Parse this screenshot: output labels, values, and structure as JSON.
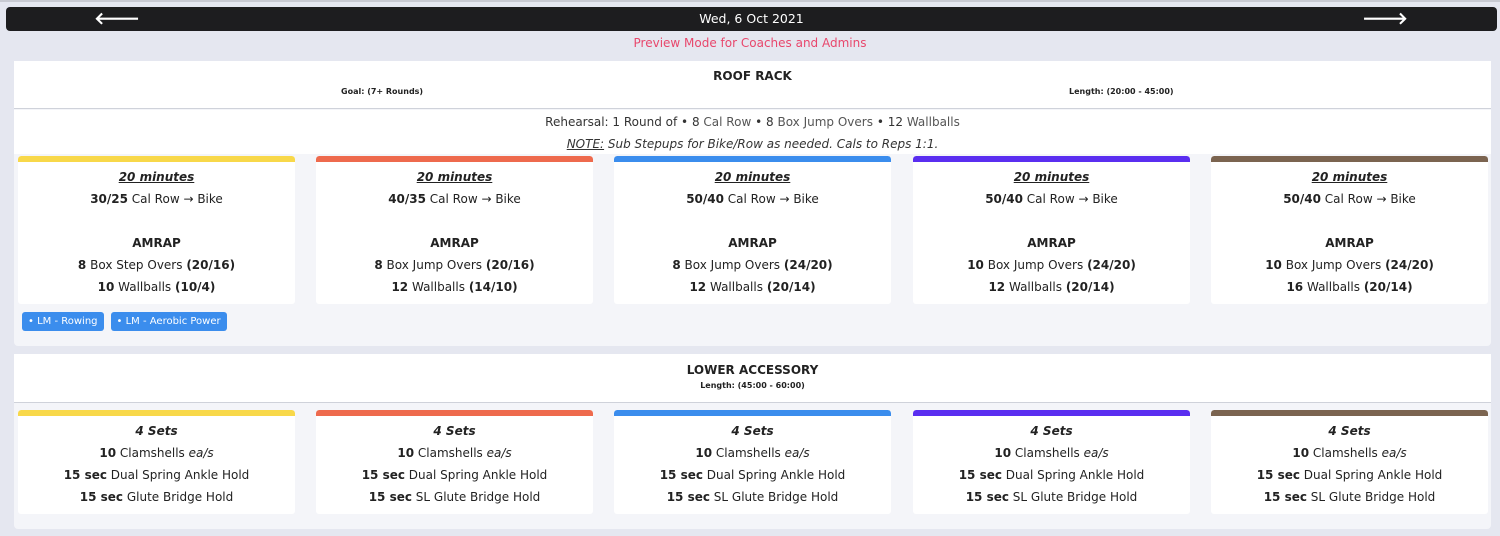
{
  "header": {
    "date": "Wed, 6 Oct 2021",
    "prev_icon": "arrow-left-icon",
    "next_icon": "arrow-right-icon",
    "prev_glyph": "🡐",
    "next_glyph": "🡒"
  },
  "preview_text": "Preview Mode for Coaches and Admins",
  "colors": {
    "yellow": "#f8d84a",
    "orange": "#ee6a4d",
    "blue": "#3b8ded",
    "purple": "#5a2ef0",
    "brown": "#7b6450",
    "preview": "#e8476c"
  },
  "sections": [
    {
      "title": "ROOF RACK",
      "goal": "Goal: (7+ Rounds)",
      "length": "Length: (20:00 - 45:00)",
      "rehearsal": {
        "prefix": "Rehearsal: 1 Round of",
        "sep": "•",
        "items": [
          [
            "8",
            "Cal Row"
          ],
          [
            "8",
            "Box Jump Overs"
          ],
          [
            "12",
            "Wallballs"
          ]
        ]
      },
      "note": {
        "label": "NOTE:",
        "text": "Sub Stepups for Bike/Row as needed. Cals to Reps 1:1."
      },
      "cards": [
        {
          "color": "#f8d84a",
          "duration": "20 minutes",
          "row_num": "30/25",
          "row_text": "Cal Row → Bike",
          "amrap": "AMRAP",
          "m1_num": "8",
          "m1_text": "Box Step Overs",
          "m1_load": "(20/16)",
          "m2_num": "10",
          "m2_text": "Wallballs",
          "m2_load": "(10/4)"
        },
        {
          "color": "#ee6a4d",
          "duration": "20 minutes",
          "row_num": "40/35",
          "row_text": "Cal Row → Bike",
          "amrap": "AMRAP",
          "m1_num": "8",
          "m1_text": "Box Jump Overs",
          "m1_load": "(20/16)",
          "m2_num": "12",
          "m2_text": "Wallballs",
          "m2_load": "(14/10)"
        },
        {
          "color": "#3b8ded",
          "duration": "20 minutes",
          "row_num": "50/40",
          "row_text": "Cal Row → Bike",
          "amrap": "AMRAP",
          "m1_num": "8",
          "m1_text": "Box Jump Overs",
          "m1_load": "(24/20)",
          "m2_num": "12",
          "m2_text": "Wallballs",
          "m2_load": "(20/14)"
        },
        {
          "color": "#5a2ef0",
          "duration": "20 minutes",
          "row_num": "50/40",
          "row_text": "Cal Row → Bike",
          "amrap": "AMRAP",
          "m1_num": "10",
          "m1_text": "Box Jump Overs",
          "m1_load": "(24/20)",
          "m2_num": "12",
          "m2_text": "Wallballs",
          "m2_load": "(20/14)"
        },
        {
          "color": "#7b6450",
          "duration": "20 minutes",
          "row_num": "50/40",
          "row_text": "Cal Row → Bike",
          "amrap": "AMRAP",
          "m1_num": "10",
          "m1_text": "Box Jump Overs",
          "m1_load": "(24/20)",
          "m2_num": "16",
          "m2_text": "Wallballs",
          "m2_load": "(20/14)"
        }
      ],
      "tags": [
        "• LM - Rowing",
        "• LM - Aerobic Power"
      ]
    },
    {
      "title": "LOWER ACCESSORY",
      "length": "Length: (45:00 - 60:00)",
      "cards": [
        {
          "color": "#f8d84a",
          "sets": "4 Sets",
          "l1_num": "10",
          "l1_text": "Clamshells",
          "l1_suffix": "ea/s",
          "l2_num": "15 sec",
          "l2_text": "Dual Spring Ankle Hold",
          "l3_num": "15 sec",
          "l3_text": "Glute Bridge Hold"
        },
        {
          "color": "#ee6a4d",
          "sets": "4 Sets",
          "l1_num": "10",
          "l1_text": "Clamshells",
          "l1_suffix": "ea/s",
          "l2_num": "15 sec",
          "l2_text": "Dual Spring Ankle Hold",
          "l3_num": "15 sec",
          "l3_text": "SL Glute Bridge Hold"
        },
        {
          "color": "#3b8ded",
          "sets": "4 Sets",
          "l1_num": "10",
          "l1_text": "Clamshells",
          "l1_suffix": "ea/s",
          "l2_num": "15 sec",
          "l2_text": "Dual Spring Ankle Hold",
          "l3_num": "15 sec",
          "l3_text": "SL Glute Bridge Hold"
        },
        {
          "color": "#5a2ef0",
          "sets": "4 Sets",
          "l1_num": "10",
          "l1_text": "Clamshells",
          "l1_suffix": "ea/s",
          "l2_num": "15 sec",
          "l2_text": "Dual Spring Ankle Hold",
          "l3_num": "15 sec",
          "l3_text": "SL Glute Bridge Hold"
        },
        {
          "color": "#7b6450",
          "sets": "4 Sets",
          "l1_num": "10",
          "l1_text": "Clamshells",
          "l1_suffix": "ea/s",
          "l2_num": "15 sec",
          "l2_text": "Dual Spring Ankle Hold",
          "l3_num": "15 sec",
          "l3_text": "SL Glute Bridge Hold"
        }
      ]
    }
  ]
}
